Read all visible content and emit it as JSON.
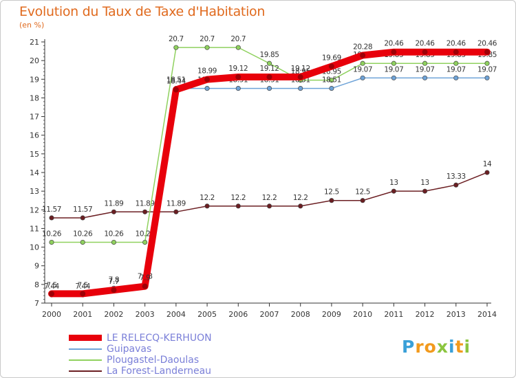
{
  "title": "Evolution du Taux de Taxe d'Habitation",
  "subtitle": "(en %)",
  "brand": {
    "letters": [
      "P",
      "r",
      "o",
      "x",
      "i",
      "t",
      "i"
    ],
    "colors": [
      "#3aa0d8",
      "#f29a1d",
      "#f29a1d",
      "#8bc53f",
      "#3aa0d8",
      "#f29a1d",
      "#8bc53f"
    ]
  },
  "chart_data": {
    "type": "line",
    "title": "Evolution du Taux de Taxe d'Habitation",
    "ylabel": "(en %)",
    "xlabel": "",
    "x": [
      "2000",
      "2001",
      "2002",
      "2003",
      "2004",
      "2005",
      "2006",
      "2007",
      "2008",
      "2009",
      "2010",
      "2011",
      "2012",
      "2013",
      "2014"
    ],
    "ylim": [
      7,
      21
    ],
    "yticks": [
      "7",
      "8",
      "9",
      "10",
      "11",
      "12",
      "13",
      "14",
      "15",
      "16",
      "17",
      "18",
      "19",
      "20",
      "21"
    ],
    "grid": false,
    "legend_position": "bottom-left",
    "series": [
      {
        "name": "LE RELECQ-KERHUON",
        "color": "#e8000b",
        "values": [
          7.5,
          7.5,
          7.7,
          7.9,
          18.44,
          18.99,
          19.12,
          19.12,
          19.12,
          19.69,
          20.28,
          20.46,
          20.46,
          20.46,
          20.46
        ],
        "labels": [
          "7.5",
          "7.5",
          "7.7",
          "7.9",
          "18.44",
          "18.99",
          "19.12",
          "19.12",
          "19.12",
          "19.69",
          "20.28",
          "20.46",
          "20.46",
          "20.46",
          "20.46"
        ]
      },
      {
        "name": "Guipavas",
        "color": "#6ea3d8",
        "values": [
          7.44,
          7.44,
          7.8,
          7.98,
          18.51,
          18.51,
          18.51,
          18.51,
          18.51,
          18.51,
          19.07,
          19.07,
          19.07,
          19.07,
          19.07
        ],
        "labels": [
          "7.44",
          "7.44",
          "7.8",
          "7.98",
          "18.51",
          "18.51",
          "18.51",
          "18.51",
          "18.51",
          "18.51",
          "19.07",
          "19.07",
          "19.07",
          "19.07",
          "19.07"
        ]
      },
      {
        "name": "Plougastel-Daoulas",
        "color": "#8fd15e",
        "values": [
          10.26,
          10.26,
          10.26,
          10.26,
          20.7,
          20.7,
          20.7,
          19.85,
          18.95,
          18.95,
          19.85,
          19.85,
          19.85,
          19.85,
          19.85
        ],
        "labels": [
          "10.26",
          "10.26",
          "10.26",
          "10.26",
          "20.7",
          "20.7",
          "20.7",
          "19.85",
          "18.95",
          "18.95",
          "19.85",
          "19.85",
          "19.85",
          "19.85",
          "19.85"
        ]
      },
      {
        "name": "La Forest-Landerneau",
        "color": "#6b1e22",
        "values": [
          11.57,
          11.57,
          11.89,
          11.89,
          11.89,
          12.2,
          12.2,
          12.2,
          12.2,
          12.5,
          12.5,
          13,
          13,
          13.33,
          14
        ],
        "labels": [
          "11.57",
          "11.57",
          "11.89",
          "11.89",
          "11.89",
          "12.2",
          "12.2",
          "12.2",
          "12.2",
          "12.5",
          "12.5",
          "13",
          "13",
          "13.33",
          "14"
        ]
      }
    ]
  }
}
